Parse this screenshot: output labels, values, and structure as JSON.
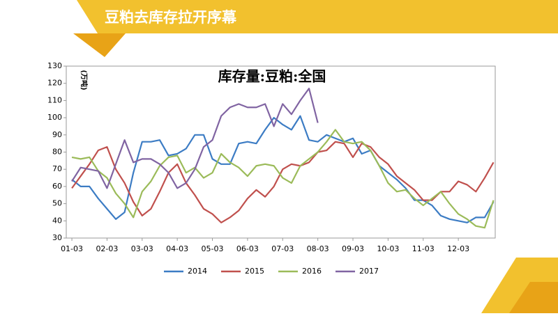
{
  "header": {
    "title": "豆粕去库存拉开序幕"
  },
  "chart_data": {
    "type": "line",
    "title": "库存量:豆粕:全国",
    "y_label": "(万吨)",
    "x": [
      0,
      0.25,
      0.5,
      0.75,
      1,
      1.25,
      1.5,
      1.75,
      2,
      2.25,
      2.5,
      2.75,
      3,
      3.25,
      3.5,
      3.75,
      4,
      4.25,
      4.5,
      4.75,
      5,
      5.25,
      5.5,
      5.75,
      6,
      6.25,
      6.5,
      6.75,
      7,
      7.25,
      7.5,
      7.75,
      8,
      8.25,
      8.5,
      8.75,
      9,
      9.25,
      9.5,
      9.75,
      10,
      10.25,
      10.5,
      10.75,
      11,
      11.25,
      11.5,
      11.75,
      12
    ],
    "xlim": [
      -0.16,
      12.05
    ],
    "xticks": [
      {
        "value": 0,
        "label": "01-03"
      },
      {
        "value": 1,
        "label": "02-03"
      },
      {
        "value": 2,
        "label": "03-03"
      },
      {
        "value": 3,
        "label": "04-03"
      },
      {
        "value": 4,
        "label": "05-03"
      },
      {
        "value": 5,
        "label": "06-03"
      },
      {
        "value": 6,
        "label": "07-03"
      },
      {
        "value": 7,
        "label": "08-03"
      },
      {
        "value": 8,
        "label": "09-03"
      },
      {
        "value": 9,
        "label": "10-03"
      },
      {
        "value": 10,
        "label": "11-03"
      },
      {
        "value": 11,
        "label": "12-03"
      }
    ],
    "ylim": [
      30,
      130
    ],
    "yticks": [
      30,
      40,
      50,
      60,
      70,
      80,
      90,
      100,
      110,
      120,
      130
    ],
    "series": [
      {
        "name": "2014",
        "color": "#3c7cc4",
        "values": [
          64,
          60,
          60,
          53,
          47,
          41,
          45,
          68,
          86,
          86,
          87,
          78,
          79,
          82,
          90,
          90,
          76,
          73,
          73,
          85,
          86,
          85,
          93,
          100,
          96,
          93,
          101,
          87,
          86,
          90,
          88,
          86,
          88,
          79,
          81,
          72,
          68,
          64,
          59,
          52,
          52,
          49,
          43,
          41,
          40,
          39,
          42,
          42,
          51
        ]
      },
      {
        "name": "2015",
        "color": "#c0504d",
        "values": [
          59,
          66,
          73,
          81,
          83,
          70,
          62,
          51,
          43,
          47,
          57,
          68,
          73,
          62,
          55,
          47,
          44,
          39,
          42,
          46,
          53,
          58,
          54,
          60,
          70,
          73,
          72,
          74,
          80,
          81,
          86,
          85,
          77,
          85,
          83,
          77,
          73,
          66,
          62,
          58,
          52,
          52,
          57,
          57,
          63,
          61,
          57,
          65,
          74
        ]
      },
      {
        "name": "2016",
        "color": "#9bbb59",
        "values": [
          77,
          76,
          77,
          69,
          65,
          56,
          50,
          42,
          57,
          63,
          72,
          77,
          78,
          68,
          71,
          65,
          68,
          79,
          74,
          71,
          66,
          72,
          73,
          72,
          65,
          62,
          72,
          76,
          80,
          86,
          93,
          86,
          85,
          86,
          81,
          72,
          62,
          57,
          58,
          53,
          49,
          53,
          57,
          50,
          44,
          41,
          37,
          36,
          52
        ]
      },
      {
        "name": "2017",
        "color": "#8064a2",
        "values": [
          63,
          71,
          70,
          69,
          59,
          73,
          87,
          74,
          76,
          76,
          73,
          68,
          59,
          62,
          70,
          83,
          87,
          101,
          106,
          108,
          106,
          106,
          108,
          95,
          108,
          102,
          110,
          117,
          97,
          null,
          null,
          null,
          null,
          null,
          null,
          null,
          null,
          null,
          null,
          null,
          null,
          null,
          null,
          null,
          null,
          null,
          null,
          null,
          null
        ]
      }
    ]
  }
}
